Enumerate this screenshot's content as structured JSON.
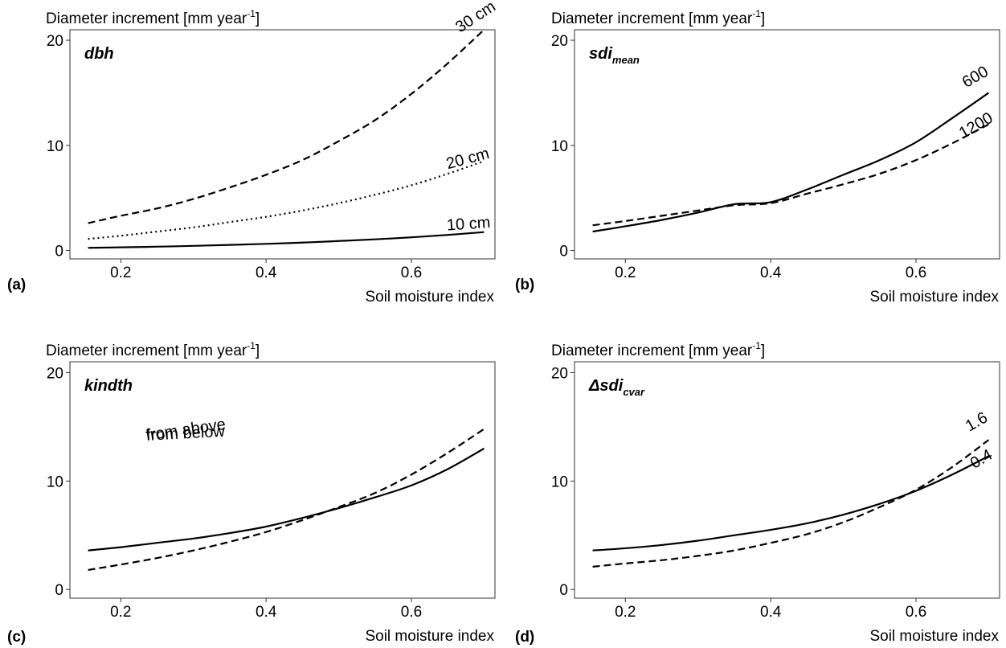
{
  "chart_data": [
    {
      "type": "line",
      "panel_label": "(a)",
      "ylabel": "Diameter increment [mm year",
      "ylabel_sup": "-1",
      "ylabel_close": "]",
      "xlabel": "Soil moisture index",
      "panel_title": "dbh",
      "panel_title_sub": "",
      "xlim": [
        0.13,
        0.715
      ],
      "ylim": [
        -0.8,
        21
      ],
      "xticks": [
        0.2,
        0.4,
        0.6
      ],
      "xtick_labels": [
        "0.2",
        "0.4",
        "0.6"
      ],
      "yticks": [
        0,
        10,
        20
      ],
      "ytick_labels": [
        "0",
        "10",
        "20"
      ],
      "series": [
        {
          "name": "30 cm",
          "style": "dashed",
          "label_angle": -33,
          "x": [
            0.155,
            0.2,
            0.25,
            0.3,
            0.35,
            0.4,
            0.45,
            0.5,
            0.55,
            0.6,
            0.65,
            0.7
          ],
          "y": [
            2.6,
            3.3,
            4.0,
            4.9,
            6.0,
            7.2,
            8.6,
            10.4,
            12.4,
            14.9,
            17.8,
            21.0
          ]
        },
        {
          "name": "20 cm",
          "style": "dotted",
          "label_angle": -15,
          "x": [
            0.155,
            0.2,
            0.25,
            0.3,
            0.35,
            0.4,
            0.45,
            0.5,
            0.55,
            0.6,
            0.65,
            0.7
          ],
          "y": [
            1.1,
            1.4,
            1.8,
            2.2,
            2.7,
            3.2,
            3.8,
            4.5,
            5.3,
            6.2,
            7.3,
            8.5
          ]
        },
        {
          "name": "10 cm",
          "style": "solid",
          "label_angle": -4,
          "x": [
            0.155,
            0.2,
            0.25,
            0.3,
            0.35,
            0.4,
            0.45,
            0.5,
            0.55,
            0.6,
            0.65,
            0.7
          ],
          "y": [
            0.25,
            0.3,
            0.36,
            0.44,
            0.53,
            0.63,
            0.75,
            0.9,
            1.06,
            1.25,
            1.48,
            1.75
          ]
        }
      ]
    },
    {
      "type": "line",
      "panel_label": "(b)",
      "ylabel": "Diameter increment [mm year",
      "ylabel_sup": "-1",
      "ylabel_close": "]",
      "xlabel": "Soil moisture index",
      "panel_title": "sdi",
      "panel_title_sub": "mean",
      "xlim": [
        0.13,
        0.715
      ],
      "ylim": [
        -0.8,
        21
      ],
      "xticks": [
        0.2,
        0.4,
        0.6
      ],
      "xtick_labels": [
        "0.2",
        "0.4",
        "0.6"
      ],
      "yticks": [
        0,
        10,
        20
      ],
      "ytick_labels": [
        "0",
        "10",
        "20"
      ],
      "series": [
        {
          "name": "600",
          "style": "solid",
          "label_angle": -30,
          "x": [
            0.155,
            0.2,
            0.25,
            0.3,
            0.35,
            0.4,
            0.45,
            0.5,
            0.55,
            0.6,
            0.65,
            0.7
          ],
          "y": [
            1.8,
            2.3,
            2.9,
            3.6,
            4.4,
            4.6,
            5.8,
            7.2,
            8.6,
            10.3,
            12.6,
            15.0
          ]
        },
        {
          "name": "1200",
          "style": "dashed",
          "label_angle": -30,
          "x": [
            0.155,
            0.2,
            0.25,
            0.3,
            0.35,
            0.4,
            0.45,
            0.5,
            0.55,
            0.6,
            0.65,
            0.7
          ],
          "y": [
            2.4,
            2.8,
            3.3,
            3.8,
            4.3,
            4.5,
            5.4,
            6.3,
            7.3,
            8.6,
            10.2,
            12.0
          ]
        }
      ]
    },
    {
      "type": "line",
      "panel_label": "(c)",
      "ylabel": "Diameter increment [mm year",
      "ylabel_sup": "-1",
      "ylabel_close": "]",
      "xlabel": "Soil moisture index",
      "panel_title": "kindth",
      "panel_title_sub": "",
      "xlim": [
        0.13,
        0.715
      ],
      "ylim": [
        -0.8,
        21
      ],
      "xticks": [
        0.2,
        0.4,
        0.6
      ],
      "xtick_labels": [
        "0.2",
        "0.4",
        "0.6"
      ],
      "yticks": [
        0,
        10,
        20
      ],
      "ytick_labels": [
        "0",
        "10",
        "20"
      ],
      "series": [
        {
          "name": "from below",
          "style": "solid",
          "label_angle": -3,
          "x": [
            0.155,
            0.2,
            0.25,
            0.3,
            0.35,
            0.4,
            0.45,
            0.5,
            0.55,
            0.6,
            0.65,
            0.7
          ],
          "y": [
            3.6,
            3.9,
            4.3,
            4.7,
            5.2,
            5.8,
            6.6,
            7.5,
            8.5,
            9.6,
            11.1,
            13.0
          ]
        },
        {
          "name": "from above",
          "style": "dashed",
          "label_angle": -8,
          "x": [
            0.155,
            0.2,
            0.25,
            0.3,
            0.35,
            0.4,
            0.45,
            0.5,
            0.55,
            0.6,
            0.65,
            0.7
          ],
          "y": [
            1.8,
            2.3,
            2.9,
            3.6,
            4.4,
            5.3,
            6.4,
            7.6,
            8.9,
            10.6,
            12.6,
            14.8
          ]
        }
      ]
    },
    {
      "type": "line",
      "panel_label": "(d)",
      "ylabel": "Diameter increment [mm year",
      "ylabel_sup": "-1",
      "ylabel_close": "]",
      "xlabel": "Soil moisture index",
      "panel_title": "Δsdi",
      "panel_title_sub": "cvar",
      "xlim": [
        0.13,
        0.715
      ],
      "ylim": [
        -0.8,
        21
      ],
      "xticks": [
        0.2,
        0.4,
        0.6
      ],
      "xtick_labels": [
        "0.2",
        "0.4",
        "0.6"
      ],
      "yticks": [
        0,
        10,
        20
      ],
      "ytick_labels": [
        "0",
        "10",
        "20"
      ],
      "series": [
        {
          "name": "1.6",
          "style": "dashed",
          "label_angle": -30,
          "x": [
            0.155,
            0.2,
            0.25,
            0.3,
            0.35,
            0.4,
            0.45,
            0.5,
            0.55,
            0.6,
            0.65,
            0.7
          ],
          "y": [
            2.1,
            2.4,
            2.7,
            3.1,
            3.6,
            4.3,
            5.1,
            6.2,
            7.6,
            9.2,
            11.3,
            13.8
          ]
        },
        {
          "name": "0.4",
          "style": "solid",
          "label_angle": -30,
          "x": [
            0.155,
            0.2,
            0.25,
            0.3,
            0.35,
            0.4,
            0.45,
            0.5,
            0.55,
            0.6,
            0.65,
            0.7
          ],
          "y": [
            3.6,
            3.8,
            4.1,
            4.5,
            5.0,
            5.5,
            6.1,
            6.9,
            7.9,
            9.1,
            10.6,
            12.3
          ]
        }
      ]
    }
  ]
}
